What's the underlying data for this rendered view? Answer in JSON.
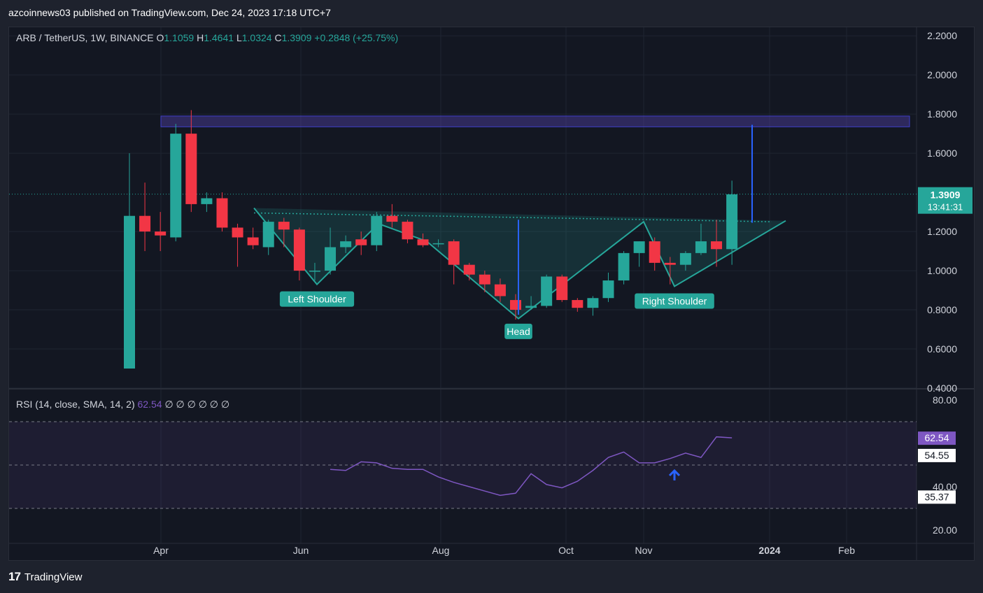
{
  "header": {
    "publish_line": "azcoinnews03 published on TradingView.com, Dec 24, 2023 17:18 UTC+7"
  },
  "footer": {
    "brand": "TradingView"
  },
  "colors": {
    "up": "#26a69a",
    "down": "#f23645",
    "bg": "#131722",
    "rsi": "#7e57c2",
    "resistance": "#3f3fc8"
  },
  "chart_data": [
    {
      "type": "candlestick",
      "symbol_line": {
        "pair": "ARB / TetherUS, 1W, BINANCE",
        "o_label": "O",
        "o": "1.1059",
        "h_label": "H",
        "h": "1.4641",
        "l_label": "L",
        "l": "1.0324",
        "c_label": "C",
        "c": "1.3909",
        "change": "+0.2848 (+25.75%)"
      },
      "x_ticks": [
        "Apr",
        "Jun",
        "Aug",
        "Oct",
        "Nov",
        "2024",
        "Feb"
      ],
      "y_ticks": [
        "2.2000",
        "2.0000",
        "1.8000",
        "1.6000",
        "1.2000",
        "1.0000",
        "0.8000",
        "0.6000",
        "0.4000"
      ],
      "ylim": [
        0.4,
        2.24
      ],
      "price_label": {
        "price": "1.3909",
        "countdown": "13:41:31"
      },
      "ohlc": [
        [
          0.5,
          1.6,
          0.5,
          1.28
        ],
        [
          1.28,
          1.45,
          1.1,
          1.2
        ],
        [
          1.2,
          1.3,
          1.1,
          1.18
        ],
        [
          1.17,
          1.75,
          1.15,
          1.7
        ],
        [
          1.7,
          1.82,
          1.3,
          1.34
        ],
        [
          1.34,
          1.4,
          1.3,
          1.37
        ],
        [
          1.37,
          1.4,
          1.2,
          1.22
        ],
        [
          1.22,
          1.24,
          1.02,
          1.17
        ],
        [
          1.17,
          1.22,
          1.11,
          1.13
        ],
        [
          1.12,
          1.26,
          1.08,
          1.25
        ],
        [
          1.25,
          1.27,
          1.12,
          1.21
        ],
        [
          1.21,
          1.22,
          0.95,
          1.0
        ],
        [
          1.0,
          1.04,
          0.95,
          1.0
        ],
        [
          1.0,
          1.22,
          0.98,
          1.12
        ],
        [
          1.12,
          1.18,
          1.09,
          1.15
        ],
        [
          1.16,
          1.2,
          1.08,
          1.13
        ],
        [
          1.13,
          1.3,
          1.1,
          1.28
        ],
        [
          1.28,
          1.34,
          1.22,
          1.25
        ],
        [
          1.25,
          1.26,
          1.14,
          1.16
        ],
        [
          1.16,
          1.19,
          1.12,
          1.13
        ],
        [
          1.14,
          1.16,
          1.12,
          1.14
        ],
        [
          1.15,
          1.16,
          0.93,
          1.03
        ],
        [
          1.03,
          1.04,
          0.95,
          0.98
        ],
        [
          0.98,
          1.0,
          0.89,
          0.93
        ],
        [
          0.93,
          0.96,
          0.84,
          0.87
        ],
        [
          0.85,
          0.88,
          0.75,
          0.8
        ],
        [
          0.81,
          0.87,
          0.8,
          0.82
        ],
        [
          0.82,
          0.98,
          0.81,
          0.97
        ],
        [
          0.97,
          0.98,
          0.84,
          0.85
        ],
        [
          0.85,
          0.86,
          0.79,
          0.81
        ],
        [
          0.81,
          0.87,
          0.77,
          0.86
        ],
        [
          0.86,
          0.99,
          0.84,
          0.95
        ],
        [
          0.95,
          1.1,
          0.93,
          1.09
        ],
        [
          1.09,
          1.15,
          1.02,
          1.15
        ],
        [
          1.15,
          1.17,
          1.0,
          1.04
        ],
        [
          1.04,
          1.07,
          0.93,
          1.03
        ],
        [
          1.03,
          1.1,
          1.0,
          1.09
        ],
        [
          1.09,
          1.24,
          1.08,
          1.15
        ],
        [
          1.15,
          1.26,
          1.02,
          1.11
        ],
        [
          1.11,
          1.46,
          1.03,
          1.39
        ]
      ],
      "resistance_zone": [
        1.735,
        1.79
      ],
      "pattern_labels": [
        "Left Shoulder",
        "Head",
        "Right Shoulder"
      ]
    },
    {
      "type": "line",
      "indicator_title": "RSI (14, close, SMA, 14, 2)",
      "rsi_value": "62.54",
      "placeholders": "∅ ∅ ∅ ∅ ∅ ∅",
      "y_ticks": [
        "80.00",
        "40.00",
        "20.00"
      ],
      "ylim": [
        20,
        80
      ],
      "bands": [
        30,
        70
      ],
      "middle": 50,
      "badges": {
        "rsi": "62.54",
        "sma": "54.55",
        "low": "35.37"
      },
      "x": [
        13,
        14,
        15,
        16,
        17,
        18,
        19,
        20,
        21,
        22,
        23,
        24,
        25,
        26,
        27,
        28,
        29,
        30,
        31,
        32,
        33,
        34,
        35,
        36,
        37,
        38,
        39
      ],
      "y": [
        48,
        47.5,
        51.5,
        51,
        48.5,
        48,
        48,
        44.5,
        42,
        40,
        38,
        36,
        37,
        46,
        41,
        39.5,
        42.5,
        47.5,
        53.5,
        56,
        51,
        51,
        53,
        55.5,
        53.5,
        63,
        62.54
      ]
    }
  ]
}
